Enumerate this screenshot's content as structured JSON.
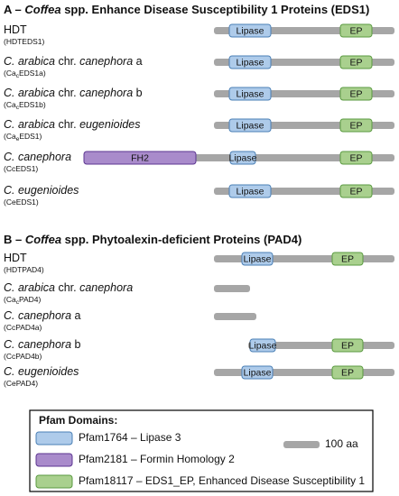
{
  "sections": [
    {
      "title": [
        "A – ",
        "Coffea",
        " spp. Enhance Disease Susceptibility 1 Proteins (EDS1)"
      ],
      "proteins": [
        {
          "name": [
            "HDT"
          ],
          "code": [
            "(HDTEDS1)"
          ],
          "domains": [
            "Lipase",
            "EP"
          ]
        },
        {
          "name": [
            "C. arabica",
            " chr. ",
            "canephora",
            " a"
          ],
          "code": [
            "(Ca",
            "c",
            "EDS1a)"
          ],
          "domains": [
            "Lipase",
            "EP"
          ]
        },
        {
          "name": [
            "C. arabica",
            " chr. ",
            "canephora",
            " b"
          ],
          "code": [
            "(Ca",
            "c",
            "EDS1b)"
          ],
          "domains": [
            "Lipase",
            "EP"
          ]
        },
        {
          "name": [
            "C. arabica",
            " chr. ",
            "eugenioides"
          ],
          "code": [
            "(Ca",
            "e",
            "EDS1)"
          ],
          "domains": [
            "Lipase",
            "EP"
          ]
        },
        {
          "name": [
            "C. canephora"
          ],
          "code": [
            "(CcEDS1)"
          ],
          "domains": [
            "FH2",
            "Lipase",
            "EP"
          ]
        },
        {
          "name": [
            "C. eugenioides"
          ],
          "code": [
            "(CeEDS1)"
          ],
          "domains": [
            "Lipase",
            "EP"
          ]
        }
      ]
    },
    {
      "title": [
        "B – ",
        "Coffea",
        " spp. Phytoalexin-deficient Proteins (PAD4)"
      ],
      "proteins": [
        {
          "name": [
            "HDT"
          ],
          "code": [
            "(HDTPAD4)"
          ],
          "domains": [
            "Lipase",
            "EP"
          ]
        },
        {
          "name": [
            "C. arabica",
            " chr. ",
            "canephora"
          ],
          "code": [
            "(Ca",
            "c",
            "PAD4)"
          ],
          "domains": []
        },
        {
          "name": [
            "C. canephora",
            " a"
          ],
          "code": [
            "(CcPAD4a)"
          ],
          "domains": []
        },
        {
          "name": [
            "C. canephora",
            " b"
          ],
          "code": [
            "(CcPAD4b)"
          ],
          "domains": [
            "Lipase",
            "EP"
          ]
        },
        {
          "name": [
            "C. eugenioides"
          ],
          "code": [
            "(CePAD4)"
          ],
          "domains": [
            "Lipase",
            "EP"
          ]
        }
      ]
    }
  ],
  "legend": {
    "title": "Pfam Domains:",
    "items": [
      "Pfam1764 – Lipase 3",
      "Pfam2181 – Formin Homology 2",
      "Pfam18117 – EDS1_EP, Enhanced Disease Susceptibility 1"
    ],
    "scale": "100 aa"
  }
}
